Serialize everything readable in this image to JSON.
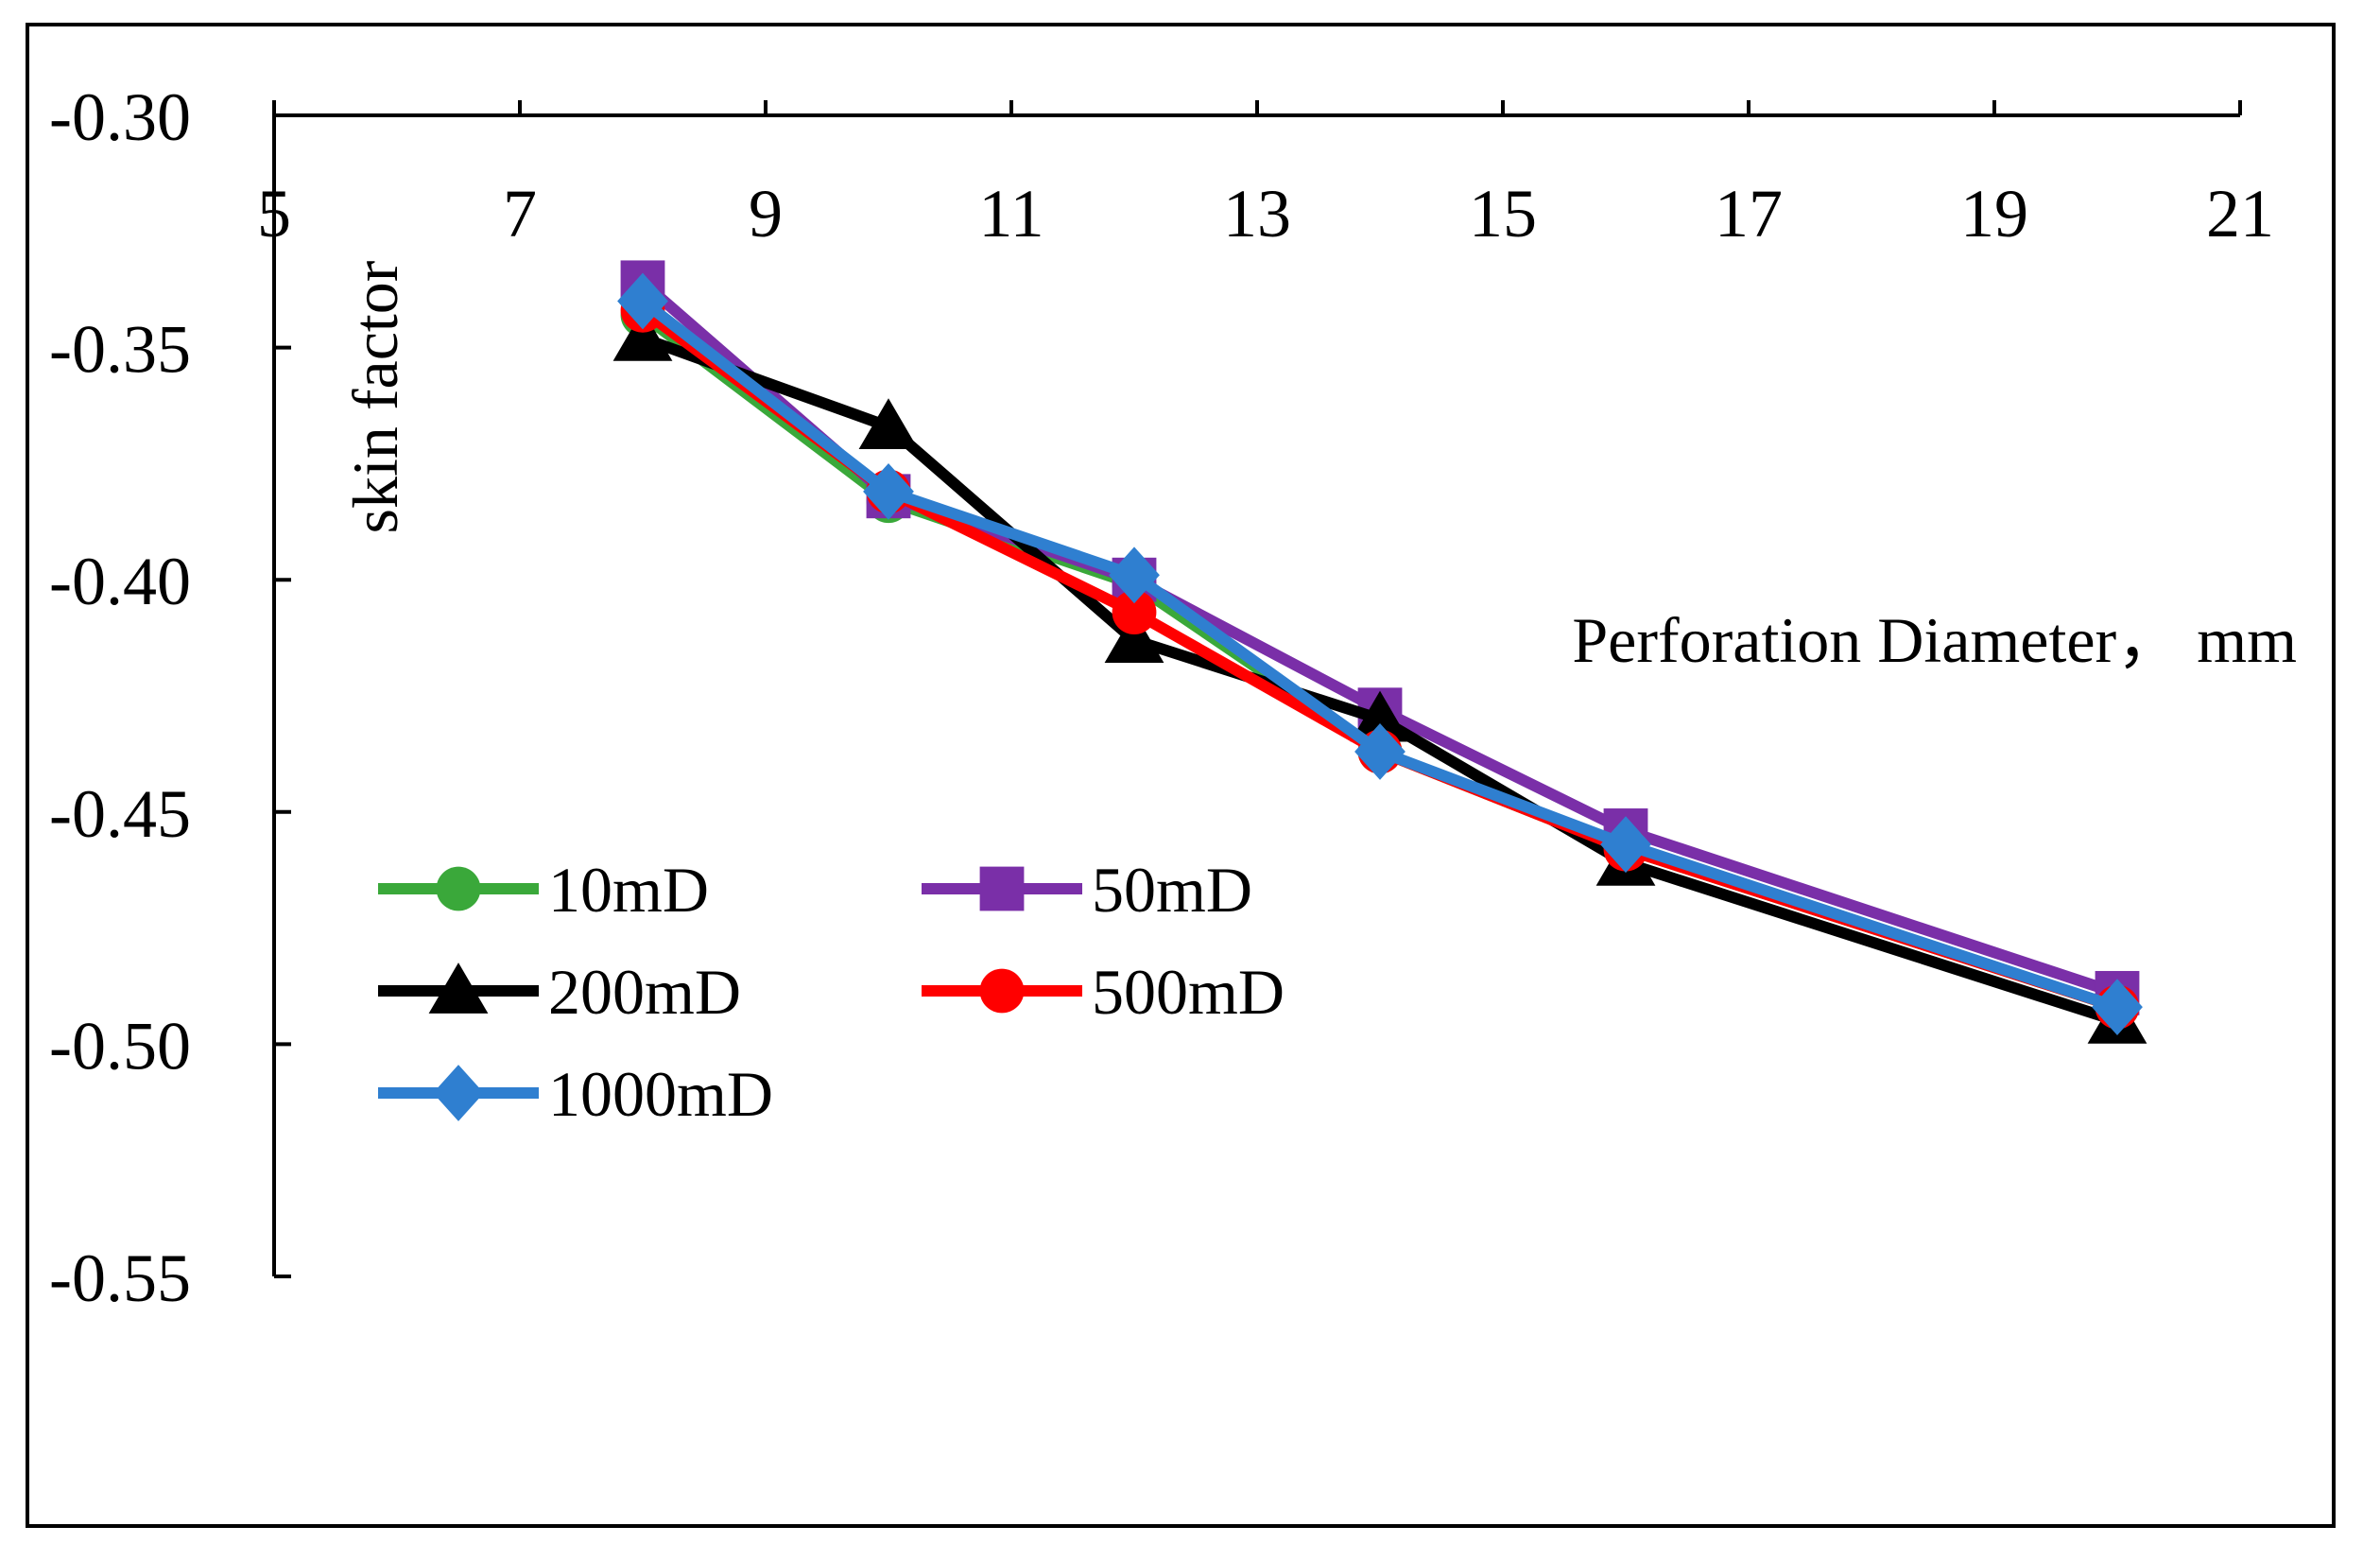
{
  "chart_data": {
    "type": "line",
    "title": "",
    "xlabel": "Perforation Diameter， mm",
    "ylabel": "skin factor",
    "xlim": [
      5,
      21
    ],
    "ylim": [
      -0.55,
      -0.3
    ],
    "xticks": [
      5,
      7,
      9,
      11,
      13,
      15,
      17,
      19,
      21
    ],
    "yticks": [
      -0.3,
      -0.35,
      -0.4,
      -0.45,
      -0.5,
      -0.55
    ],
    "xtick_labels": [
      "5",
      "7",
      "9",
      "11",
      "13",
      "15",
      "17",
      "19",
      "21"
    ],
    "ytick_labels": [
      "-0.30",
      "-0.35",
      "-0.40",
      "-0.45",
      "-0.50",
      "-0.55"
    ],
    "x": [
      8,
      10,
      12,
      14,
      16,
      20
    ],
    "x_axis_position": "top",
    "grid": false,
    "legend_position": "lower-left inside plot",
    "series": [
      {
        "name": "10mD",
        "color": "#3aa83a",
        "marker": "circle",
        "values": [
          -0.343,
          -0.383,
          -0.401,
          -0.437,
          -0.458,
          -0.492
        ]
      },
      {
        "name": "50mD",
        "color": "#7a2fa8",
        "marker": "square",
        "values": [
          -0.336,
          -0.382,
          -0.4,
          -0.428,
          -0.454,
          -0.489
        ]
      },
      {
        "name": "200mD",
        "color": "#000000",
        "marker": "triangle",
        "values": [
          -0.348,
          -0.367,
          -0.413,
          -0.43,
          -0.461,
          -0.495
        ]
      },
      {
        "name": "500mD",
        "color": "#ff0000",
        "marker": "circle",
        "values": [
          -0.342,
          -0.381,
          -0.407,
          -0.437,
          -0.458,
          -0.492
        ]
      },
      {
        "name": "1000mD",
        "color": "#2f7fd0",
        "marker": "diamond",
        "values": [
          -0.34,
          -0.381,
          -0.399,
          -0.437,
          -0.457,
          -0.492
        ]
      }
    ]
  }
}
